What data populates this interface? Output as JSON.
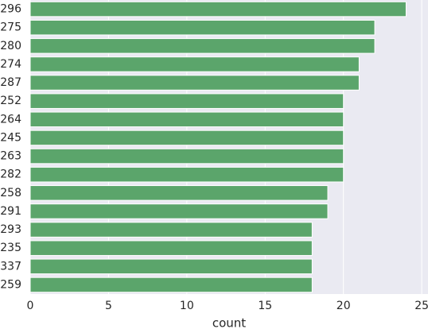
{
  "chart_data": {
    "type": "barh",
    "x_label": "count",
    "categories": [
      "296",
      "275",
      "280",
      "274",
      "287",
      "252",
      "264",
      "245",
      "263",
      "282",
      "258",
      "291",
      "293",
      "235",
      "337",
      "259"
    ],
    "values": [
      24,
      22,
      22,
      21,
      21,
      20,
      20,
      20,
      20,
      20,
      19,
      19,
      18,
      18,
      18,
      18
    ],
    "color": "#5ba56b",
    "xlim": [
      0,
      25.4
    ],
    "xticks": [
      0,
      5,
      10,
      15,
      20,
      25
    ],
    "grid": true
  }
}
